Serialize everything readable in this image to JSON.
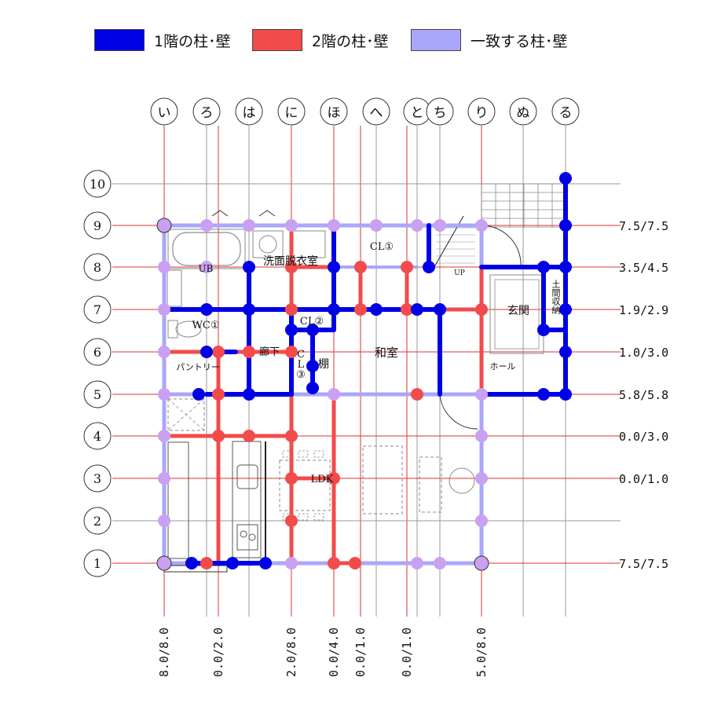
{
  "legend": [
    {
      "key": "floor1",
      "label": "1階の柱･壁",
      "color": "#0000e6"
    },
    {
      "key": "floor2",
      "label": "2階の柱･壁",
      "color": "#f24b4b"
    },
    {
      "key": "match",
      "label": "一致する柱･壁",
      "color": "#aaa6fb"
    }
  ],
  "colors": {
    "floor1": "#0000e6",
    "floor2": "#f24b4b",
    "match": "#aaa6fb",
    "match_dot": "#c9a0f2",
    "axis_red": "#e23030",
    "axis_gray": "#9a9a9a"
  },
  "column_axes": [
    {
      "label": "い"
    },
    {
      "label": "ろ"
    },
    {
      "label": "は"
    },
    {
      "label": "に"
    },
    {
      "label": "ほ"
    },
    {
      "label": "へ"
    },
    {
      "label": "と"
    },
    {
      "label": "ち"
    },
    {
      "label": "り"
    },
    {
      "label": "ぬ"
    },
    {
      "label": "る"
    }
  ],
  "row_axes": [
    {
      "label": "10"
    },
    {
      "label": "9"
    },
    {
      "label": "8"
    },
    {
      "label": "7"
    },
    {
      "label": "6"
    },
    {
      "label": "5"
    },
    {
      "label": "4"
    },
    {
      "label": "3"
    },
    {
      "label": "2"
    },
    {
      "label": "1"
    }
  ],
  "right_values": [
    {
      "row": "9",
      "text": "7.5/7.5"
    },
    {
      "row": "8",
      "text": "3.5/4.5"
    },
    {
      "row": "7",
      "text": "1.9/2.9"
    },
    {
      "row": "6",
      "text": "1.0/3.0"
    },
    {
      "row": "5",
      "text": "5.8/5.8"
    },
    {
      "row": "4",
      "text": "0.0/3.0"
    },
    {
      "row": "3",
      "text": "0.0/1.0"
    },
    {
      "row": "1",
      "text": "7.5/7.5"
    }
  ],
  "bottom_values": [
    {
      "col": "い",
      "text": "8.0/8.0"
    },
    {
      "col": "ろ",
      "text": "0.0/2.0"
    },
    {
      "col": "に",
      "text": "2.0/8.0"
    },
    {
      "col": "ほ",
      "text": "0.0/4.0"
    },
    {
      "col": "へ",
      "text": "0.0/1.0"
    },
    {
      "col": "と",
      "text": "0.0/1.0"
    },
    {
      "col": "り",
      "text": "5.0/8.0"
    }
  ],
  "room_labels": [
    {
      "name": "ub",
      "text": "UB"
    },
    {
      "name": "washroom",
      "text": "洗面脱衣室"
    },
    {
      "name": "closet-1",
      "text": "CL①"
    },
    {
      "name": "up",
      "text": "UP"
    },
    {
      "name": "wc",
      "text": "WC①"
    },
    {
      "name": "closet-2",
      "text": "CL②"
    },
    {
      "name": "entrance",
      "text": "玄関"
    },
    {
      "name": "doma-storage",
      "text": "土間収納"
    },
    {
      "name": "pantry",
      "text": "パントリー"
    },
    {
      "name": "corridor",
      "text": "廊下"
    },
    {
      "name": "closet-3",
      "text": "CL③"
    },
    {
      "name": "shelf",
      "text": "棚"
    },
    {
      "name": "washitsu",
      "text": "和室"
    },
    {
      "name": "hall",
      "text": "ホール"
    },
    {
      "name": "ldk",
      "text": "LDK"
    }
  ]
}
